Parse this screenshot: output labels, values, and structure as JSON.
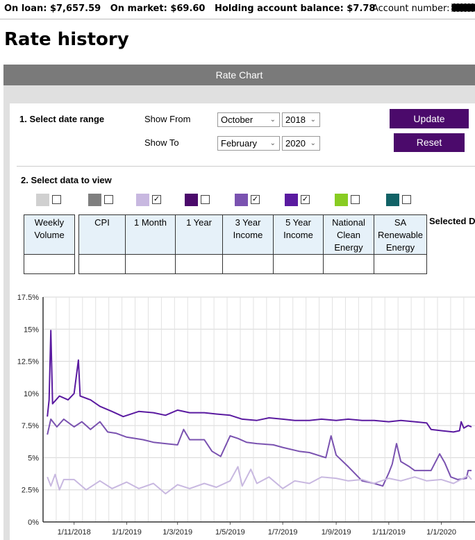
{
  "header": {
    "on_loan": "On loan: $7,657.59",
    "on_market": "On market: $69.60",
    "holding": "Holding account balance: $7.78",
    "account_label": "Account number:"
  },
  "page_title": "Rate history",
  "panel_title": "Rate Chart",
  "date_range": {
    "section_label": "1. Select date range",
    "from_label": "Show From",
    "to_label": "Show To",
    "from_month": "October",
    "from_year": "2018",
    "to_month": "February",
    "to_year": "2020",
    "update_label": "Update",
    "reset_label": "Reset"
  },
  "data_section": {
    "label": "2. Select data to view",
    "selected_label": "Selected Da",
    "series": [
      {
        "name": "Weekly Volume",
        "color": "#d0d0d0",
        "checked": false,
        "value": ""
      },
      {
        "name": "CPI",
        "color": "#7f7f7f",
        "checked": false,
        "value": ""
      },
      {
        "name": "1 Month",
        "color": "#c8b8e0",
        "checked": true,
        "value": ""
      },
      {
        "name": "1 Year",
        "color": "#4b0a6b",
        "checked": false,
        "value": ""
      },
      {
        "name": "3 Year Income",
        "color": "#7a52b0",
        "checked": true,
        "value": ""
      },
      {
        "name": "5 Year Income",
        "color": "#5a1aa0",
        "checked": true,
        "value": ""
      },
      {
        "name": "National Clean Energy",
        "color": "#88cc22",
        "checked": false,
        "value": ""
      },
      {
        "name": "SA Renewable Energy",
        "color": "#116266",
        "checked": false,
        "value": ""
      }
    ]
  },
  "chart_data": {
    "type": "line",
    "ylim": [
      0,
      17.5
    ],
    "y_ticks": [
      "0%",
      "2.5%",
      "5%",
      "7.5%",
      "10%",
      "12.5%",
      "15%",
      "17.5%"
    ],
    "x_ticks": [
      "1/11/2018",
      "1/1/2019",
      "1/3/2019",
      "1/5/2019",
      "1/7/2019",
      "1/9/2019",
      "1/11/2019",
      "1/1/2020"
    ],
    "grid": true,
    "series": [
      {
        "name": "5 Year Income",
        "color": "#5a1aa0",
        "points": [
          [
            "2018-10-01",
            8.2
          ],
          [
            "2018-10-03",
            9.5
          ],
          [
            "2018-10-05",
            14.9
          ],
          [
            "2018-10-07",
            9.2
          ],
          [
            "2018-10-15",
            9.8
          ],
          [
            "2018-10-25",
            9.5
          ],
          [
            "2018-11-01",
            10.0
          ],
          [
            "2018-11-06",
            12.6
          ],
          [
            "2018-11-08",
            9.8
          ],
          [
            "2018-11-20",
            9.5
          ],
          [
            "2018-12-01",
            9.0
          ],
          [
            "2018-12-15",
            8.6
          ],
          [
            "2018-12-28",
            8.2
          ],
          [
            "2019-01-15",
            8.6
          ],
          [
            "2019-02-01",
            8.5
          ],
          [
            "2019-02-15",
            8.3
          ],
          [
            "2019-03-01",
            8.7
          ],
          [
            "2019-03-15",
            8.5
          ],
          [
            "2019-04-01",
            8.5
          ],
          [
            "2019-04-15",
            8.4
          ],
          [
            "2019-05-01",
            8.3
          ],
          [
            "2019-05-15",
            8.0
          ],
          [
            "2019-06-01",
            7.9
          ],
          [
            "2019-06-15",
            8.1
          ],
          [
            "2019-07-01",
            8.0
          ],
          [
            "2019-07-15",
            7.9
          ],
          [
            "2019-08-01",
            7.9
          ],
          [
            "2019-08-15",
            8.0
          ],
          [
            "2019-09-01",
            7.9
          ],
          [
            "2019-09-15",
            8.0
          ],
          [
            "2019-10-01",
            7.9
          ],
          [
            "2019-10-15",
            7.9
          ],
          [
            "2019-11-01",
            7.8
          ],
          [
            "2019-11-15",
            7.9
          ],
          [
            "2019-12-01",
            7.8
          ],
          [
            "2019-12-15",
            7.7
          ],
          [
            "2019-12-20",
            7.2
          ],
          [
            "2020-01-01",
            7.1
          ],
          [
            "2020-01-15",
            7.0
          ],
          [
            "2020-01-22",
            7.1
          ],
          [
            "2020-01-24",
            7.8
          ],
          [
            "2020-01-27",
            7.3
          ],
          [
            "2020-02-01",
            7.5
          ],
          [
            "2020-02-05",
            7.4
          ]
        ]
      },
      {
        "name": "3 Year Income",
        "color": "#7a52b0",
        "points": [
          [
            "2018-10-01",
            6.8
          ],
          [
            "2018-10-05",
            8.0
          ],
          [
            "2018-10-12",
            7.4
          ],
          [
            "2018-10-20",
            8.0
          ],
          [
            "2018-11-01",
            7.4
          ],
          [
            "2018-11-10",
            7.8
          ],
          [
            "2018-11-20",
            7.2
          ],
          [
            "2018-12-01",
            7.8
          ],
          [
            "2018-12-10",
            7.0
          ],
          [
            "2018-12-20",
            6.9
          ],
          [
            "2019-01-01",
            6.6
          ],
          [
            "2019-01-20",
            6.4
          ],
          [
            "2019-02-01",
            6.2
          ],
          [
            "2019-02-15",
            6.1
          ],
          [
            "2019-03-01",
            6.0
          ],
          [
            "2019-03-08",
            7.2
          ],
          [
            "2019-03-15",
            6.4
          ],
          [
            "2019-04-01",
            6.4
          ],
          [
            "2019-04-10",
            5.5
          ],
          [
            "2019-04-20",
            5.1
          ],
          [
            "2019-05-01",
            6.7
          ],
          [
            "2019-05-10",
            6.5
          ],
          [
            "2019-05-20",
            6.2
          ],
          [
            "2019-06-01",
            6.1
          ],
          [
            "2019-06-20",
            6.0
          ],
          [
            "2019-07-01",
            5.8
          ],
          [
            "2019-07-20",
            5.5
          ],
          [
            "2019-08-01",
            5.4
          ],
          [
            "2019-08-20",
            5.0
          ],
          [
            "2019-08-26",
            6.7
          ],
          [
            "2019-09-01",
            5.2
          ],
          [
            "2019-09-15",
            4.3
          ],
          [
            "2019-10-01",
            3.2
          ],
          [
            "2019-10-15",
            3.0
          ],
          [
            "2019-10-25",
            2.8
          ],
          [
            "2019-11-01",
            3.8
          ],
          [
            "2019-11-05",
            4.5
          ],
          [
            "2019-11-10",
            6.1
          ],
          [
            "2019-11-15",
            4.7
          ],
          [
            "2019-11-25",
            4.3
          ],
          [
            "2019-12-01",
            4.0
          ],
          [
            "2019-12-20",
            4.0
          ],
          [
            "2019-12-30",
            5.3
          ],
          [
            "2020-01-05",
            4.6
          ],
          [
            "2020-01-12",
            3.5
          ],
          [
            "2020-01-20",
            3.3
          ],
          [
            "2020-01-30",
            3.4
          ],
          [
            "2020-02-01",
            4.0
          ],
          [
            "2020-02-05",
            4.0
          ]
        ]
      },
      {
        "name": "1 Month",
        "color": "#c8b8e0",
        "points": [
          [
            "2018-10-01",
            3.5
          ],
          [
            "2018-10-05",
            2.8
          ],
          [
            "2018-10-10",
            3.7
          ],
          [
            "2018-10-15",
            2.5
          ],
          [
            "2018-10-20",
            3.3
          ],
          [
            "2018-11-01",
            3.3
          ],
          [
            "2018-11-15",
            2.5
          ],
          [
            "2018-12-01",
            3.2
          ],
          [
            "2018-12-15",
            2.6
          ],
          [
            "2019-01-01",
            3.1
          ],
          [
            "2019-01-15",
            2.6
          ],
          [
            "2019-02-01",
            3.0
          ],
          [
            "2019-02-15",
            2.2
          ],
          [
            "2019-03-01",
            2.9
          ],
          [
            "2019-03-15",
            2.6
          ],
          [
            "2019-04-01",
            3.0
          ],
          [
            "2019-04-15",
            2.7
          ],
          [
            "2019-05-01",
            3.2
          ],
          [
            "2019-05-10",
            4.3
          ],
          [
            "2019-05-15",
            2.8
          ],
          [
            "2019-05-25",
            4.1
          ],
          [
            "2019-06-01",
            3.0
          ],
          [
            "2019-06-15",
            3.5
          ],
          [
            "2019-07-01",
            2.6
          ],
          [
            "2019-07-15",
            3.2
          ],
          [
            "2019-08-01",
            3.0
          ],
          [
            "2019-08-15",
            3.5
          ],
          [
            "2019-09-01",
            3.4
          ],
          [
            "2019-09-15",
            3.2
          ],
          [
            "2019-10-01",
            3.3
          ],
          [
            "2019-10-15",
            3.0
          ],
          [
            "2019-11-01",
            3.4
          ],
          [
            "2019-11-15",
            3.2
          ],
          [
            "2019-12-01",
            3.5
          ],
          [
            "2019-12-15",
            3.2
          ],
          [
            "2020-01-01",
            3.3
          ],
          [
            "2020-01-15",
            3.0
          ],
          [
            "2020-02-01",
            3.6
          ],
          [
            "2020-02-05",
            3.3
          ]
        ]
      }
    ]
  }
}
